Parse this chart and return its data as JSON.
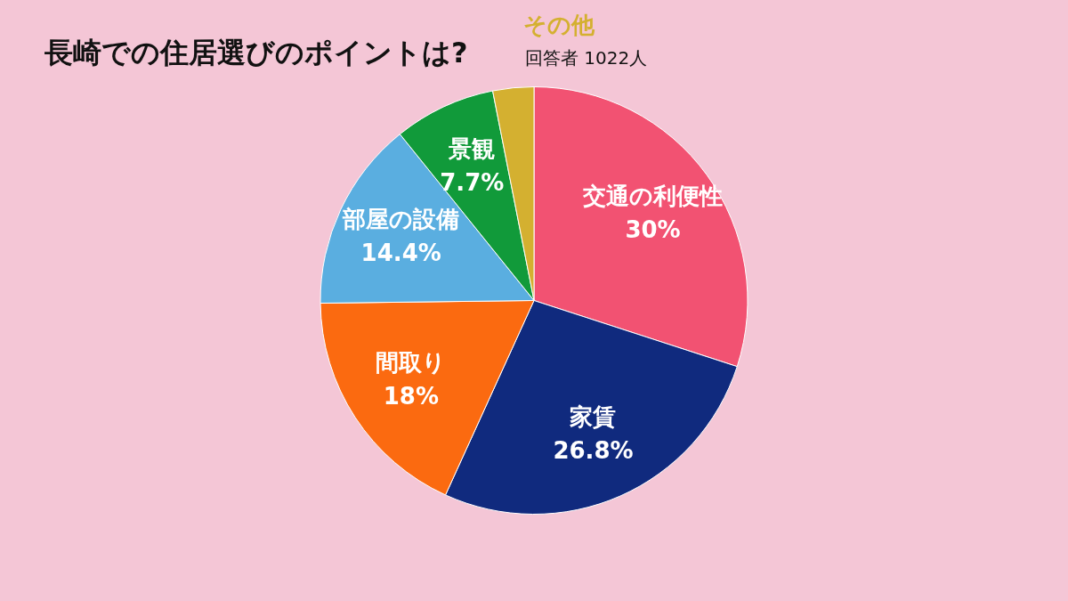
{
  "chart_data": {
    "type": "pie",
    "title": "長崎での住居選びのポイントは?",
    "subtitle": "回答者 1022人",
    "categories": [
      "交通の利便性",
      "家賃",
      "間取り",
      "部屋の設備",
      "景観",
      "その他"
    ],
    "values": [
      30,
      26.8,
      18,
      14.4,
      7.7,
      3.1
    ],
    "colors": [
      "#f25272",
      "#102a7e",
      "#fb6a10",
      "#5aaee0",
      "#119a3a",
      "#d4b030"
    ],
    "value_labels": [
      "30%",
      "26.8%",
      "18%",
      "14.4%",
      "7.7%",
      null
    ],
    "legend": false
  }
}
